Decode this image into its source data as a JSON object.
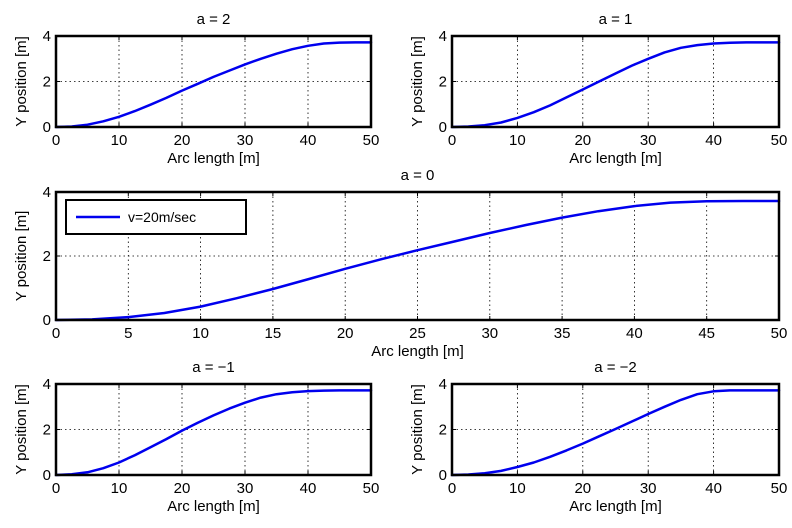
{
  "figure": {
    "background": "#ffffff",
    "line_color": "#0000ee",
    "grid_color": "#000000"
  },
  "chart_data": [
    {
      "id": "a2",
      "type": "line",
      "title": "a = 2",
      "xlabel": "Arc length [m]",
      "ylabel": "Y position [m]",
      "xlim": [
        0,
        50
      ],
      "ylim": [
        0,
        4
      ],
      "xticks": [
        "0",
        "10",
        "20",
        "30",
        "40",
        "50"
      ],
      "yticks": [
        "0",
        "2",
        "4"
      ],
      "grid": true,
      "legend": null,
      "series": [
        {
          "x": [
            0,
            2.5,
            5,
            7.5,
            10,
            12.5,
            15,
            17.5,
            20,
            22.5,
            25,
            27.5,
            30,
            32.5,
            35,
            37.5,
            40,
            42.5,
            45,
            47.5,
            50
          ],
          "y": [
            0,
            0.02,
            0.1,
            0.25,
            0.45,
            0.7,
            0.98,
            1.28,
            1.6,
            1.9,
            2.2,
            2.48,
            2.75,
            3.0,
            3.22,
            3.42,
            3.57,
            3.67,
            3.71,
            3.72,
            3.72
          ]
        }
      ]
    },
    {
      "id": "a1",
      "type": "line",
      "title": "a = 1",
      "xlabel": "Arc length [m]",
      "ylabel": "Y position [m]",
      "xlim": [
        0,
        50
      ],
      "ylim": [
        0,
        4
      ],
      "xticks": [
        "0",
        "10",
        "20",
        "30",
        "40",
        "50"
      ],
      "yticks": [
        "0",
        "2",
        "4"
      ],
      "grid": true,
      "legend": null,
      "series": [
        {
          "x": [
            0,
            2.5,
            5,
            7.5,
            10,
            12.5,
            15,
            17.5,
            20,
            22.5,
            25,
            27.5,
            30,
            32.5,
            35,
            37.5,
            40,
            42.5,
            45,
            47.5,
            50
          ],
          "y": [
            0,
            0.02,
            0.08,
            0.2,
            0.4,
            0.65,
            0.95,
            1.3,
            1.65,
            2.0,
            2.35,
            2.7,
            3.0,
            3.28,
            3.48,
            3.6,
            3.67,
            3.7,
            3.72,
            3.72,
            3.72
          ]
        }
      ]
    },
    {
      "id": "a0",
      "type": "line",
      "title": "a = 0",
      "xlabel": "Arc length [m]",
      "ylabel": "Y position [m]",
      "xlim": [
        0,
        50
      ],
      "ylim": [
        0,
        4
      ],
      "xticks": [
        "0",
        "5",
        "10",
        "15",
        "20",
        "25",
        "30",
        "35",
        "40",
        "45",
        "50"
      ],
      "yticks": [
        "0",
        "2",
        "4"
      ],
      "grid": true,
      "legend": "top-left",
      "series": [
        {
          "name": "v=20m/sec",
          "x": [
            0,
            2.5,
            5,
            7.5,
            10,
            12.5,
            15,
            17.5,
            20,
            22.5,
            25,
            27.5,
            30,
            32.5,
            35,
            37.5,
            40,
            42.5,
            45,
            47.5,
            50
          ],
          "y": [
            0,
            0.02,
            0.09,
            0.22,
            0.42,
            0.68,
            0.97,
            1.28,
            1.6,
            1.9,
            2.18,
            2.45,
            2.72,
            2.97,
            3.2,
            3.4,
            3.56,
            3.67,
            3.71,
            3.72,
            3.72
          ]
        }
      ]
    },
    {
      "id": "am1",
      "type": "line",
      "title": "a = −1",
      "xlabel": "Arc length [m]",
      "ylabel": "Y position [m]",
      "xlim": [
        0,
        50
      ],
      "ylim": [
        0,
        4
      ],
      "xticks": [
        "0",
        "10",
        "20",
        "30",
        "40",
        "50"
      ],
      "yticks": [
        "0",
        "2",
        "4"
      ],
      "grid": true,
      "legend": null,
      "series": [
        {
          "x": [
            0,
            2.5,
            5,
            7.5,
            10,
            12.5,
            15,
            17.5,
            20,
            22.5,
            25,
            27.5,
            30,
            32.5,
            35,
            37.5,
            40,
            42.5,
            45,
            47.5,
            50
          ],
          "y": [
            0,
            0.03,
            0.12,
            0.3,
            0.55,
            0.87,
            1.22,
            1.58,
            1.95,
            2.3,
            2.62,
            2.92,
            3.18,
            3.4,
            3.55,
            3.64,
            3.69,
            3.71,
            3.72,
            3.72,
            3.72
          ]
        }
      ]
    },
    {
      "id": "am2",
      "type": "line",
      "title": "a = −2",
      "xlabel": "Arc length [m]",
      "ylabel": "Y position [m]",
      "xlim": [
        0,
        50
      ],
      "ylim": [
        0,
        4
      ],
      "xticks": [
        "0",
        "10",
        "20",
        "30",
        "40",
        "50"
      ],
      "yticks": [
        "0",
        "2",
        "4"
      ],
      "grid": true,
      "legend": null,
      "series": [
        {
          "x": [
            0,
            2.5,
            5,
            7.5,
            10,
            12.5,
            15,
            17.5,
            20,
            22.5,
            25,
            27.5,
            30,
            32.5,
            35,
            37.5,
            40,
            42.5,
            45,
            47.5,
            50
          ],
          "y": [
            0,
            0.02,
            0.08,
            0.18,
            0.35,
            0.55,
            0.8,
            1.08,
            1.38,
            1.7,
            2.02,
            2.35,
            2.68,
            3.0,
            3.3,
            3.55,
            3.68,
            3.72,
            3.72,
            3.72,
            3.72
          ]
        }
      ]
    }
  ]
}
